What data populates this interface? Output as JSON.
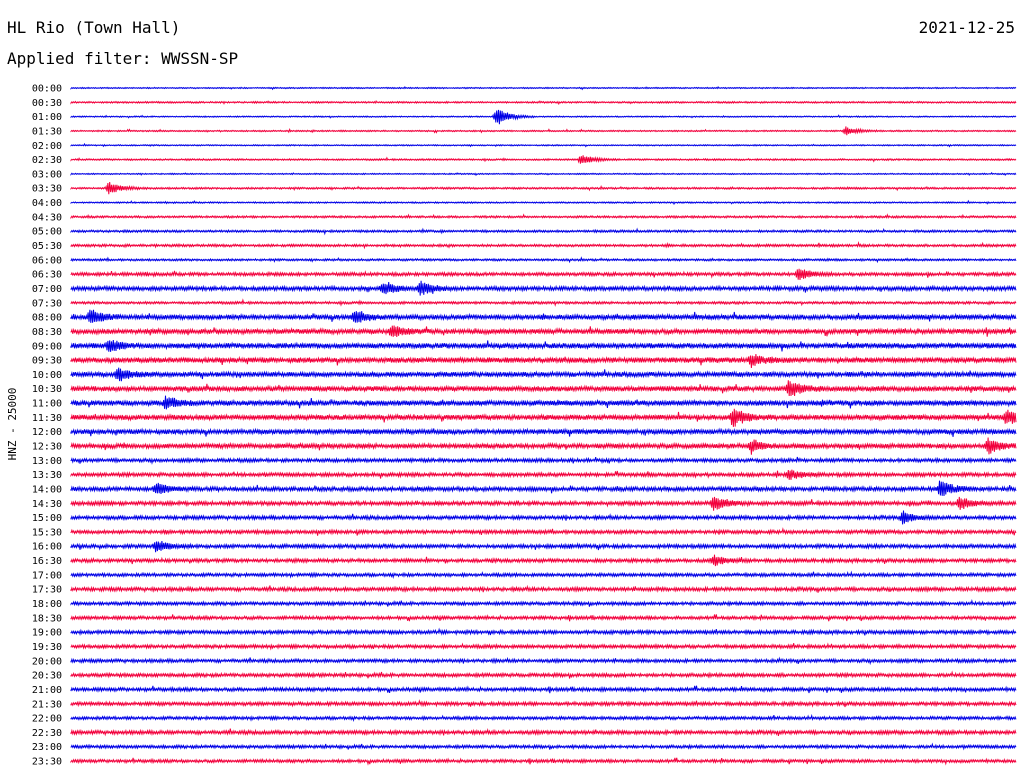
{
  "header": {
    "station": "HL Rio (Town Hall)",
    "date": "2021-12-25",
    "filter": "Applied filter: WWSSN-SP"
  },
  "chart_data": {
    "type": "line",
    "title": "HL Rio (Town Hall)",
    "ylabel": "HNZ - 25000",
    "xlabel": "",
    "colors": [
      "#0000e6",
      "#f2003c"
    ],
    "row_labels": [
      "00:00",
      "00:30",
      "01:00",
      "01:30",
      "02:00",
      "02:30",
      "03:00",
      "03:30",
      "04:00",
      "04:30",
      "05:00",
      "05:30",
      "06:00",
      "06:30",
      "07:00",
      "07:30",
      "08:00",
      "08:30",
      "09:00",
      "09:30",
      "10:00",
      "10:30",
      "11:00",
      "11:30",
      "12:00",
      "12:30",
      "13:00",
      "13:30",
      "14:00",
      "14:30",
      "15:00",
      "15:30",
      "16:00",
      "16:30",
      "17:00",
      "17:30",
      "18:00",
      "18:30",
      "19:00",
      "19:30",
      "20:00",
      "20:30",
      "21:00",
      "21:30",
      "22:00",
      "22:30",
      "23:00",
      "23:30"
    ],
    "noise_levels": [
      0.6,
      0.8,
      0.6,
      0.7,
      0.6,
      0.8,
      0.6,
      0.9,
      0.7,
      1.0,
      1.1,
      1.2,
      1.0,
      1.6,
      2.0,
      1.2,
      2.4,
      2.4,
      2.6,
      2.6,
      2.4,
      2.5,
      2.6,
      2.5,
      2.4,
      2.3,
      1.7,
      1.8,
      2.0,
      1.9,
      1.8,
      1.7,
      1.8,
      1.7,
      1.6,
      1.8,
      1.6,
      1.6,
      1.7,
      1.7,
      1.6,
      1.7,
      1.7,
      1.7,
      1.5,
      1.8,
      1.5,
      1.5
    ],
    "events": [
      {
        "row": 2,
        "x": 0.45,
        "amp": 10
      },
      {
        "row": 3,
        "x": 0.82,
        "amp": 4
      },
      {
        "row": 5,
        "x": 0.54,
        "amp": 5
      },
      {
        "row": 7,
        "x": 0.04,
        "amp": 6
      },
      {
        "row": 13,
        "x": 0.77,
        "amp": 6
      },
      {
        "row": 14,
        "x": 0.33,
        "amp": 6
      },
      {
        "row": 14,
        "x": 0.37,
        "amp": 7
      },
      {
        "row": 16,
        "x": 0.02,
        "amp": 7
      },
      {
        "row": 16,
        "x": 0.3,
        "amp": 7
      },
      {
        "row": 17,
        "x": 0.34,
        "amp": 6
      },
      {
        "row": 18,
        "x": 0.04,
        "amp": 6
      },
      {
        "row": 19,
        "x": 0.72,
        "amp": 6
      },
      {
        "row": 20,
        "x": 0.05,
        "amp": 7
      },
      {
        "row": 21,
        "x": 0.76,
        "amp": 8
      },
      {
        "row": 22,
        "x": 0.1,
        "amp": 6
      },
      {
        "row": 23,
        "x": 0.7,
        "amp": 9
      },
      {
        "row": 23,
        "x": 0.99,
        "amp": 8
      },
      {
        "row": 25,
        "x": 0.72,
        "amp": 6
      },
      {
        "row": 25,
        "x": 0.97,
        "amp": 8
      },
      {
        "row": 27,
        "x": 0.76,
        "amp": 5
      },
      {
        "row": 28,
        "x": 0.09,
        "amp": 6
      },
      {
        "row": 28,
        "x": 0.92,
        "amp": 9
      },
      {
        "row": 29,
        "x": 0.68,
        "amp": 8
      },
      {
        "row": 29,
        "x": 0.94,
        "amp": 6
      },
      {
        "row": 30,
        "x": 0.88,
        "amp": 6
      },
      {
        "row": 32,
        "x": 0.09,
        "amp": 6
      },
      {
        "row": 33,
        "x": 0.68,
        "amp": 5
      }
    ]
  }
}
